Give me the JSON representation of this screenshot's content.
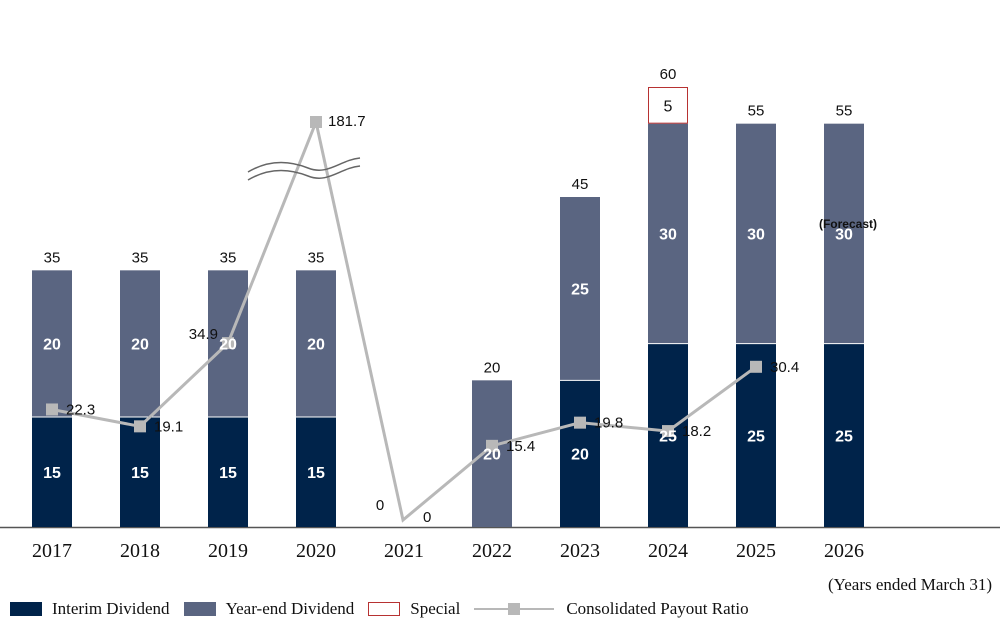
{
  "chart_data": {
    "type": "bar",
    "stacked": true,
    "categories": [
      "2017",
      "2018",
      "2019",
      "2020",
      "2021",
      "2022",
      "2023",
      "2024",
      "2025",
      "2026"
    ],
    "series": [
      {
        "name": "Interim Dividend",
        "values": [
          15,
          15,
          15,
          15,
          0,
          0,
          20,
          25,
          25,
          25
        ],
        "labels": [
          "15",
          "15",
          "15",
          "15",
          "",
          "",
          "20",
          "25",
          "25",
          "25"
        ],
        "color": "#00234a"
      },
      {
        "name": "Year-end Dividend",
        "values": [
          20,
          20,
          20,
          20,
          0,
          20,
          25,
          30,
          30,
          30
        ],
        "labels": [
          "20",
          "20",
          "20",
          "20",
          "",
          "20",
          "25",
          "30",
          "30",
          "30"
        ],
        "color": "#5a6581"
      },
      {
        "name": "Special",
        "values": [
          0,
          0,
          0,
          0,
          0,
          0,
          0,
          5,
          0,
          0
        ],
        "labels": [
          "",
          "",
          "",
          "",
          "",
          "",
          "",
          "5",
          "",
          ""
        ],
        "color": "#b73232"
      }
    ],
    "totals": [
      "35",
      "35",
      "35",
      "35",
      "0",
      "20",
      "45",
      "60",
      "55",
      "55"
    ],
    "line": {
      "name": "Consolidated Payout Ratio",
      "values": [
        22.3,
        19.1,
        34.9,
        181.7,
        0,
        15.4,
        19.8,
        18.2,
        30.4,
        null
      ],
      "labels": [
        "22.3",
        "19.1",
        "34.9",
        "181.7",
        "0",
        "15.4",
        "19.8",
        "18.2",
        "30.4",
        ""
      ],
      "color": "#b8b8b8",
      "axis_break": true
    },
    "annotations": [
      {
        "category": "2026",
        "text": "(Forecast)"
      }
    ],
    "xlabel": "",
    "ylabel": "",
    "ylim": [
      0,
      60
    ],
    "grid": false,
    "legend_position": "bottom-left"
  },
  "note": "(Years ended March 31)",
  "legend": {
    "interim": "Interim Dividend",
    "yearend": "Year-end Dividend",
    "special": "Special",
    "ratio": "Consolidated Payout Ratio"
  }
}
